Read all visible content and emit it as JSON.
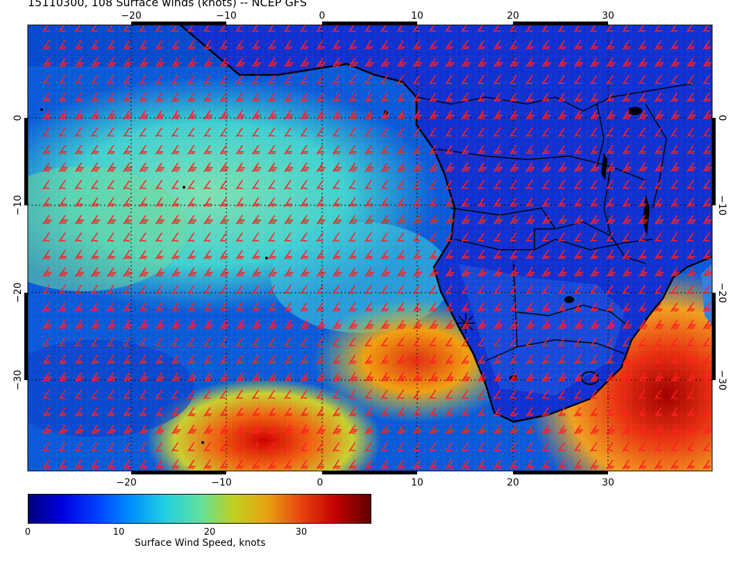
{
  "title": "15110300, 108 Surface winds (knots) -- NCEP GFS",
  "map": {
    "lon_ticks": [
      "−20",
      "−10",
      "0",
      "10",
      "20",
      "30"
    ],
    "lat_ticks": [
      "0",
      "−10",
      "−20",
      "−30"
    ],
    "projection": "lat-lon",
    "region": "South Atlantic and southern Africa",
    "barb_color": "#ff2020",
    "coastline_color": "#000000"
  },
  "colorbar": {
    "ticks": [
      "0",
      "10",
      "20",
      "30"
    ],
    "label": "Surface Wind Speed, knots",
    "colors": [
      "#00007f",
      "#0000e0",
      "#0040ff",
      "#0090ff",
      "#20d0e0",
      "#60e0a0",
      "#c0d020",
      "#e8a010",
      "#e84010",
      "#c00000",
      "#600000"
    ]
  }
}
